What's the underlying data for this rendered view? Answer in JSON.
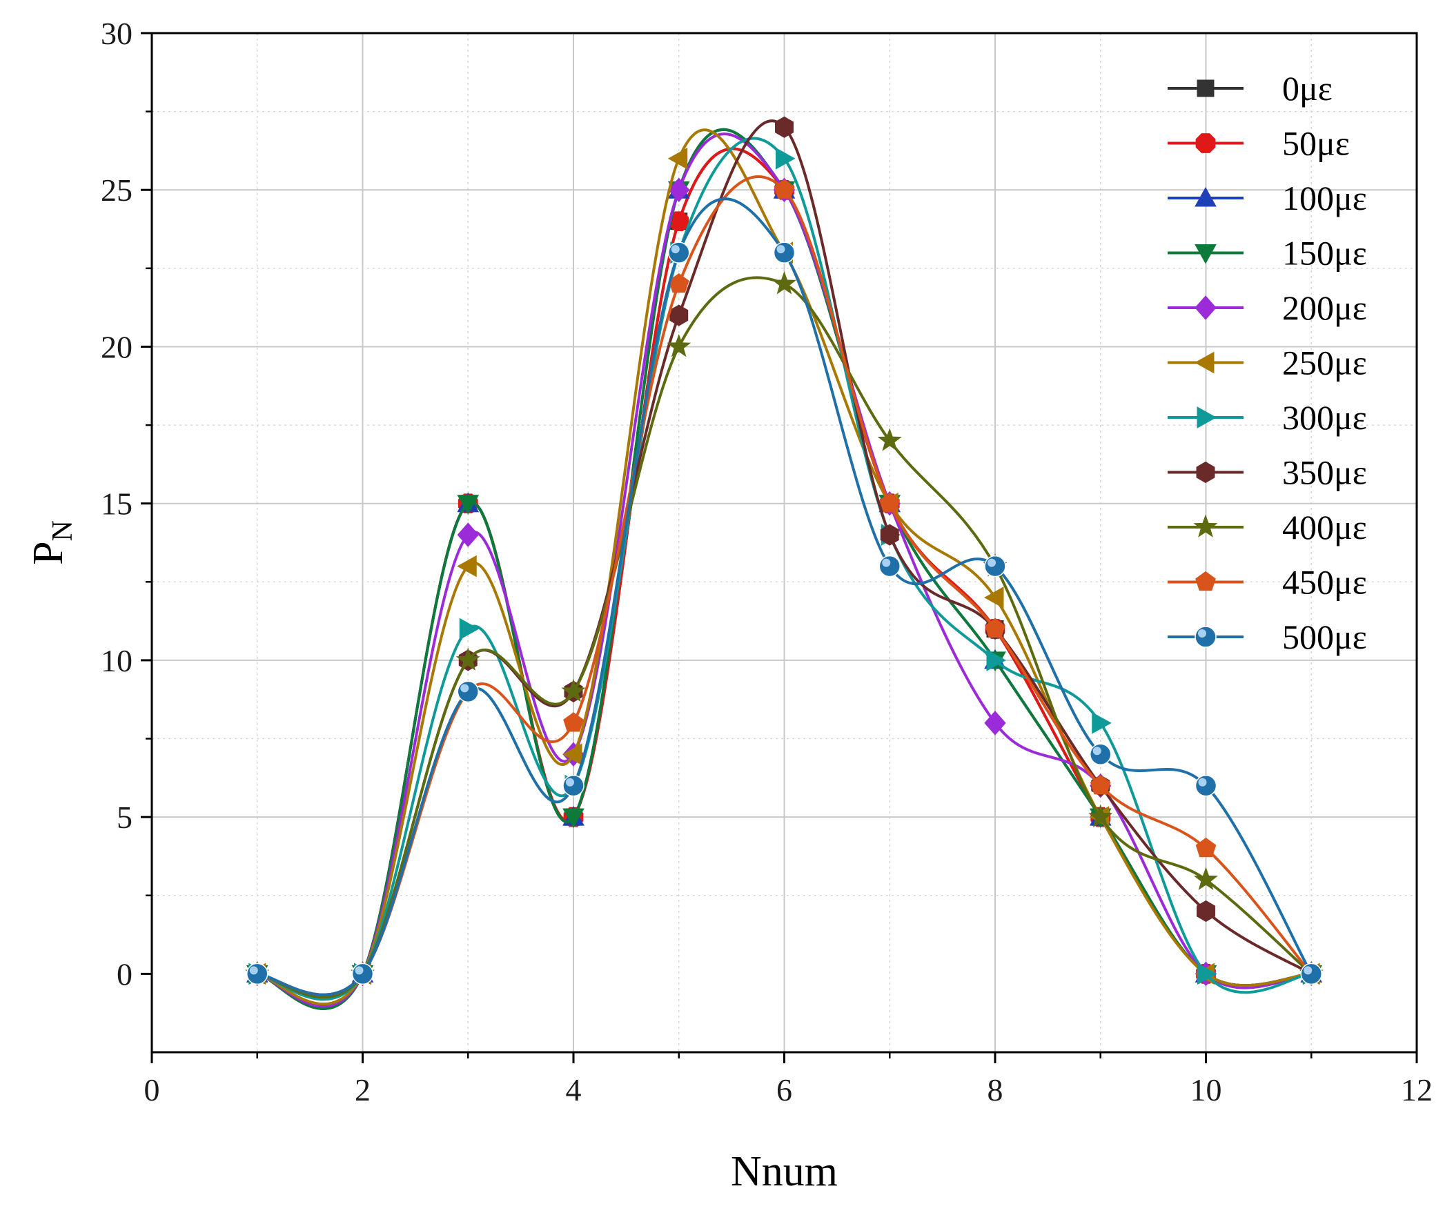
{
  "chart_data": {
    "type": "line",
    "title": "",
    "xlabel": "Nnum",
    "ylabel": {
      "main": "P",
      "subscript": "N"
    },
    "xlim": [
      0,
      12
    ],
    "ylim": [
      -2.5,
      30
    ],
    "xticks": [
      0,
      2,
      4,
      6,
      8,
      10,
      12
    ],
    "xtick_labels": [
      "0",
      "2",
      "4",
      "6",
      "8",
      "10",
      "12"
    ],
    "yticks": [
      0,
      5,
      10,
      15,
      20,
      25,
      30
    ],
    "ytick_labels": [
      "0",
      "5",
      "10",
      "15",
      "20",
      "25",
      "30"
    ],
    "grid": true,
    "legend_position": "top-right",
    "x": [
      1,
      2,
      3,
      4,
      5,
      6,
      7,
      8,
      9,
      10,
      11
    ],
    "series": [
      {
        "name": "0με",
        "color": "#333333",
        "marker": "square",
        "values": [
          0,
          0,
          15,
          5,
          24,
          25,
          15,
          11,
          5,
          0,
          0
        ]
      },
      {
        "name": "50με",
        "color": "#e01818",
        "marker": "circle",
        "values": [
          0,
          0,
          15,
          5,
          24,
          25,
          15,
          11,
          5,
          0,
          0
        ]
      },
      {
        "name": "100με",
        "color": "#1f3fb8",
        "marker": "triangle-up",
        "values": [
          0,
          0,
          15,
          5,
          25,
          25,
          15,
          10,
          5,
          0,
          0
        ]
      },
      {
        "name": "150με",
        "color": "#0e7a3a",
        "marker": "triangle-down",
        "values": [
          0,
          0,
          15,
          5,
          25,
          25,
          15,
          10,
          5,
          0,
          0
        ]
      },
      {
        "name": "200με",
        "color": "#9b2ad8",
        "marker": "diamond",
        "values": [
          0,
          0,
          14,
          7,
          25,
          25,
          15,
          8,
          6,
          0,
          0
        ]
      },
      {
        "name": "250με",
        "color": "#a87800",
        "marker": "triangle-left",
        "values": [
          0,
          0,
          13,
          7,
          26,
          23,
          15,
          12,
          5,
          0,
          0
        ]
      },
      {
        "name": "300με",
        "color": "#0f9a9a",
        "marker": "triangle-right",
        "values": [
          0,
          0,
          11,
          6,
          23,
          26,
          14,
          10,
          8,
          0,
          0
        ]
      },
      {
        "name": "350με",
        "color": "#6b2a2a",
        "marker": "hexagon",
        "values": [
          0,
          0,
          10,
          9,
          21,
          27,
          14,
          11,
          6,
          2,
          0
        ]
      },
      {
        "name": "400με",
        "color": "#5e6a10",
        "marker": "star",
        "values": [
          0,
          0,
          10,
          9,
          20,
          22,
          17,
          13,
          5,
          3,
          0
        ]
      },
      {
        "name": "450με",
        "color": "#d9541a",
        "marker": "pentagon",
        "values": [
          0,
          0,
          9,
          8,
          22,
          25,
          15,
          11,
          6,
          4,
          0
        ]
      },
      {
        "name": "500με",
        "color": "#1f6fa8",
        "marker": "sphere",
        "values": [
          0,
          0,
          9,
          6,
          23,
          23,
          13,
          13,
          7,
          6,
          0
        ]
      }
    ]
  }
}
